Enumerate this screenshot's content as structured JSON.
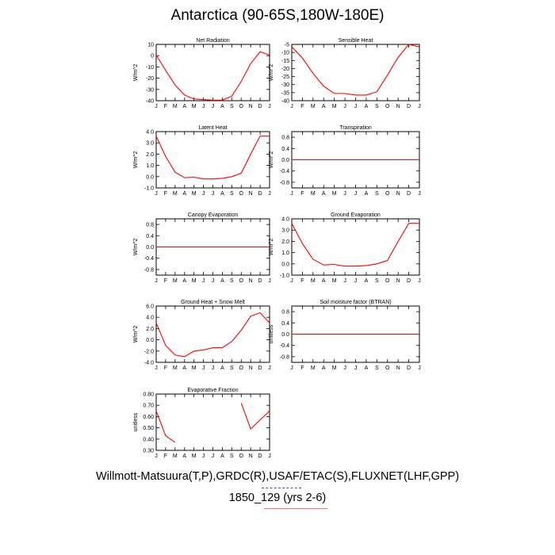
{
  "title": "Antarctica (90-65S,180W-180E)",
  "footer": {
    "line1": "Willmott-Matsuura(T,P),GRDC(R),USAF/ETAC(S),FLUXNET(LHF,GPP)",
    "line2": "1850_129 (yrs 2-6)"
  },
  "colors": {
    "series": "#ff0000",
    "axis": "#000000"
  },
  "chart_data": [
    {
      "type": "line",
      "title": "Net Radiation",
      "ylabel": "W/m^2",
      "months": [
        "J",
        "F",
        "M",
        "A",
        "M",
        "J",
        "J",
        "A",
        "S",
        "O",
        "N",
        "D",
        "J"
      ],
      "ylim": [
        -40,
        10
      ],
      "yticks": [
        10,
        0,
        -10,
        -20,
        -30,
        -40
      ],
      "ytick_labels": [
        "10",
        "0",
        "-10",
        "-20",
        "-30",
        "-40"
      ],
      "values": [
        0.5,
        -13,
        -26,
        -35,
        -38.5,
        -39,
        -39.5,
        -39.5,
        -36,
        -23,
        -7,
        3.5,
        0.5
      ]
    },
    {
      "type": "line",
      "title": "Sensible Heat",
      "ylabel": "W/m^2",
      "months": [
        "J",
        "F",
        "M",
        "A",
        "M",
        "J",
        "J",
        "A",
        "S",
        "O",
        "N",
        "D",
        "J"
      ],
      "ylim": [
        -40,
        -5
      ],
      "yticks": [
        -5,
        -10,
        -15,
        -20,
        -25,
        -30,
        -35,
        -40
      ],
      "ytick_labels": [
        "-5",
        "-10",
        "-15",
        "-20",
        "-25",
        "-30",
        "-35",
        "-40"
      ],
      "values": [
        -6.5,
        -13.5,
        -23,
        -31,
        -35.5,
        -35.5,
        -36.5,
        -36.5,
        -34.5,
        -24,
        -13,
        -5,
        -6.5
      ]
    },
    {
      "type": "line",
      "title": "Latent Heat",
      "ylabel": "W/m^2",
      "months": [
        "J",
        "F",
        "M",
        "A",
        "M",
        "J",
        "J",
        "A",
        "S",
        "O",
        "N",
        "D",
        "J"
      ],
      "ylim": [
        -1.0,
        4.0
      ],
      "yticks": [
        4.0,
        3.0,
        2.0,
        1.0,
        0.0,
        -1.0
      ],
      "ytick_labels": [
        "4.0",
        "3.0",
        "2.0",
        "1.0",
        "0.0",
        "-1.0"
      ],
      "values": [
        3.6,
        1.8,
        0.4,
        -0.1,
        -0.05,
        -0.2,
        -0.2,
        -0.15,
        0.0,
        0.3,
        2.0,
        3.6,
        3.6
      ]
    },
    {
      "type": "line",
      "title": "Transpiration",
      "ylabel": "W/m^2",
      "months": [
        "J",
        "F",
        "M",
        "A",
        "M",
        "J",
        "J",
        "A",
        "S",
        "O",
        "N",
        "D",
        "J"
      ],
      "ylim": [
        -1.0,
        1.0
      ],
      "yticks": [
        0.8,
        0.4,
        0.0,
        -0.4,
        -0.8
      ],
      "ytick_labels": [
        "0.8",
        "0.4",
        "0.0",
        "-0.4",
        "-0.8"
      ],
      "values": [
        0,
        0,
        0,
        0,
        0,
        0,
        0,
        0,
        0,
        0,
        0,
        0,
        0
      ]
    },
    {
      "type": "line",
      "title": "Canopy Evaporation",
      "ylabel": "W/m^2",
      "months": [
        "J",
        "F",
        "M",
        "A",
        "M",
        "J",
        "J",
        "A",
        "S",
        "O",
        "N",
        "D",
        "J"
      ],
      "ylim": [
        -1.0,
        1.0
      ],
      "yticks": [
        0.8,
        0.4,
        0.0,
        -0.4,
        -0.8
      ],
      "ytick_labels": [
        "0.8",
        "0.4",
        "0.0",
        "-0.4",
        "-0.8"
      ],
      "values": [
        0,
        0,
        0,
        0,
        0,
        0,
        0,
        0,
        0,
        0,
        0,
        0,
        0
      ]
    },
    {
      "type": "line",
      "title": "Ground Evaporation",
      "ylabel": "W/m^2",
      "months": [
        "J",
        "F",
        "M",
        "A",
        "M",
        "J",
        "J",
        "A",
        "S",
        "O",
        "N",
        "D",
        "J"
      ],
      "ylim": [
        -1.0,
        4.0
      ],
      "yticks": [
        4.0,
        3.0,
        2.0,
        1.0,
        0.0,
        -1.0
      ],
      "ytick_labels": [
        "4.0",
        "3.0",
        "2.0",
        "1.0",
        "0.0",
        "-1.0"
      ],
      "values": [
        3.6,
        1.8,
        0.4,
        -0.1,
        -0.05,
        -0.2,
        -0.2,
        -0.15,
        0.0,
        0.3,
        2.0,
        3.6,
        3.6
      ]
    },
    {
      "type": "line",
      "title": "Ground Heat + Snow Melt",
      "ylabel": "W/m^2",
      "months": [
        "J",
        "F",
        "M",
        "A",
        "M",
        "J",
        "J",
        "A",
        "S",
        "O",
        "N",
        "D",
        "J"
      ],
      "ylim": [
        -4.0,
        6.0
      ],
      "yticks": [
        6.0,
        4.0,
        2.0,
        0.0,
        -2.0,
        -4.0
      ],
      "ytick_labels": [
        "6.0",
        "4.0",
        "2.0",
        "0.0",
        "-2.0",
        "-4.0"
      ],
      "values": [
        3.0,
        -1.0,
        -2.7,
        -3.0,
        -2.0,
        -1.8,
        -1.4,
        -1.4,
        -0.3,
        1.7,
        4.2,
        4.8,
        3.0
      ]
    },
    {
      "type": "line",
      "title": "Soil moisture factor (BTRAN)",
      "ylabel": "unitless",
      "months": [
        "J",
        "F",
        "M",
        "A",
        "M",
        "J",
        "J",
        "A",
        "S",
        "O",
        "N",
        "D",
        "J"
      ],
      "ylim": [
        -1.0,
        1.0
      ],
      "yticks": [
        0.8,
        0.4,
        0.0,
        -0.4,
        -0.8
      ],
      "ytick_labels": [
        "0.8",
        "0.4",
        "0.0",
        "-0.4",
        "-0.8"
      ],
      "values": [
        0,
        0,
        0,
        0,
        0,
        0,
        0,
        0,
        0,
        0,
        0,
        0,
        0
      ]
    },
    {
      "type": "line",
      "title": "Evaporative Fraction",
      "ylabel": "unitless",
      "months": [
        "J",
        "F",
        "M",
        "A",
        "M",
        "J",
        "J",
        "A",
        "S",
        "O",
        "N",
        "D",
        "J"
      ],
      "ylim": [
        0.3,
        0.8
      ],
      "yticks": [
        0.8,
        0.7,
        0.6,
        0.5,
        0.4,
        0.3
      ],
      "ytick_labels": [
        "0.80",
        "0.70",
        "0.60",
        "0.50",
        "0.40",
        "0.30"
      ],
      "values": [
        0.65,
        0.43,
        0.37,
        null,
        null,
        null,
        null,
        null,
        null,
        0.72,
        0.49,
        0.57,
        0.65
      ]
    }
  ]
}
